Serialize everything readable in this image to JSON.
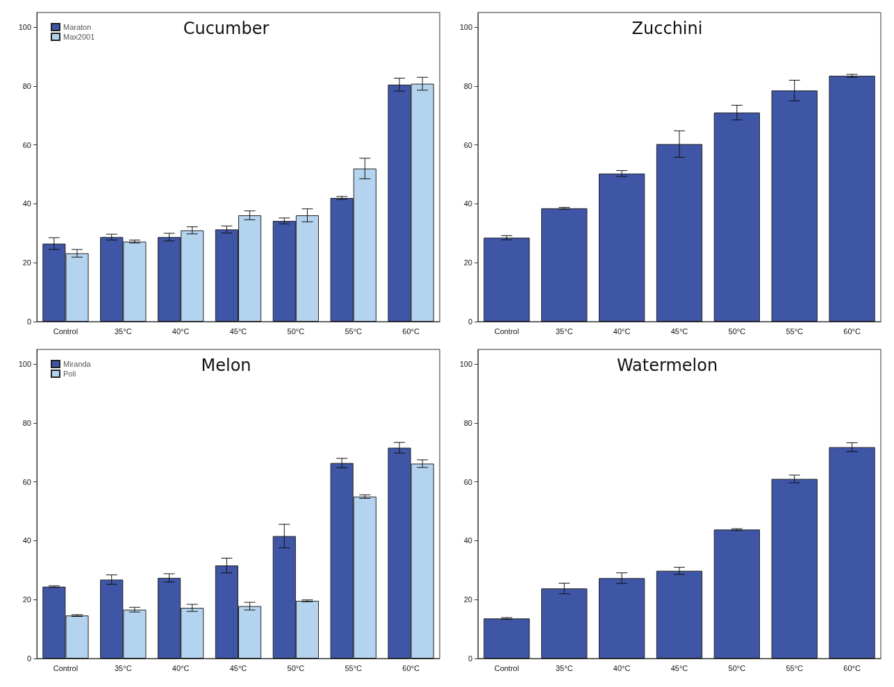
{
  "chart_data": [
    {
      "type": "bar",
      "title": "Cucumber",
      "categories": [
        "Control",
        "35°C",
        "40°C",
        "45°C",
        "50°C",
        "55°C",
        "60°C"
      ],
      "series": [
        {
          "name": "Maraton",
          "color": "#3f55a6",
          "values": [
            26.5,
            28.7,
            28.7,
            31.3,
            34.2,
            42,
            80.5
          ],
          "errors": [
            2,
            1,
            1.3,
            1.2,
            1,
            0.5,
            2.2
          ]
        },
        {
          "name": "Max2001",
          "color": "#b4d3ee",
          "values": [
            23.2,
            27.2,
            31,
            36.1,
            36.1,
            52,
            80.8
          ],
          "errors": [
            1.3,
            0.5,
            1.2,
            1.5,
            2.2,
            3.5,
            2.2
          ]
        }
      ],
      "ylim": [
        0,
        105
      ],
      "yticks": [
        0,
        20,
        40,
        60,
        80,
        100
      ],
      "grid": false,
      "legend": "top left"
    },
    {
      "type": "bar",
      "title": "Zucchini",
      "categories": [
        "Control",
        "35°C",
        "40°C",
        "45°C",
        "50°C",
        "55°C",
        "60°C"
      ],
      "series": [
        {
          "color": "#3f55a6",
          "values": [
            28.5,
            38.5,
            50.3,
            60.3,
            71,
            78.5,
            83.5
          ],
          "errors": [
            0.7,
            0.3,
            1,
            4.5,
            2.5,
            3.5,
            0.5
          ]
        }
      ],
      "ylim": [
        0,
        105
      ],
      "yticks": [
        0,
        20,
        40,
        60,
        80,
        100
      ],
      "grid": false
    },
    {
      "type": "bar",
      "title": "Melon",
      "categories": [
        "Control",
        "35°C",
        "40°C",
        "45°C",
        "50°C",
        "55°C",
        "60°C"
      ],
      "series": [
        {
          "name": "Miranda",
          "color": "#3f55a6",
          "values": [
            24.4,
            26.8,
            27.4,
            31.6,
            41.6,
            66.4,
            71.6
          ],
          "errors": [
            0.3,
            1.6,
            1.4,
            2.5,
            4,
            1.6,
            1.8
          ]
        },
        {
          "name": "Poli",
          "color": "#b4d3ee",
          "values": [
            14.6,
            16.6,
            17.2,
            17.8,
            19.6,
            55,
            66.2
          ],
          "errors": [
            0.3,
            0.8,
            1.2,
            1.3,
            0.3,
            0.6,
            1.3
          ]
        }
      ],
      "ylim": [
        0,
        105
      ],
      "yticks": [
        0,
        20,
        40,
        60,
        80,
        100
      ],
      "grid": false,
      "legend": "top left"
    },
    {
      "type": "bar",
      "title": "Watermelon",
      "categories": [
        "Control",
        "35°C",
        "40°C",
        "45°C",
        "50°C",
        "55°C",
        "60°C"
      ],
      "series": [
        {
          "color": "#3f55a6",
          "values": [
            13.6,
            23.8,
            27.3,
            29.8,
            43.8,
            61,
            71.8
          ],
          "errors": [
            0.3,
            1.8,
            1.8,
            1.2,
            0.3,
            1.3,
            1.5
          ]
        }
      ],
      "ylim": [
        0,
        105
      ],
      "yticks": [
        0,
        20,
        40,
        60,
        80,
        100
      ],
      "grid": false
    }
  ]
}
